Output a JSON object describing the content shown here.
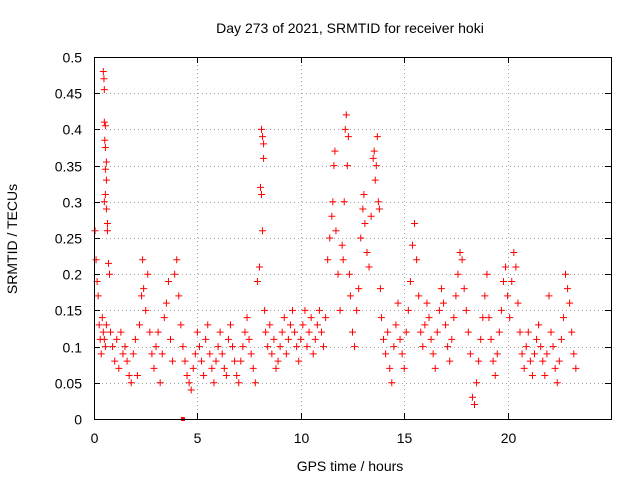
{
  "chart_data": {
    "type": "scatter",
    "title": "Day 273 of 2021, SRMTID for receiver hoki",
    "xlabel": "GPS time / hours",
    "ylabel": "SRMTID / TECUs",
    "xlim": [
      0,
      25
    ],
    "ylim": [
      0,
      0.5
    ],
    "x_ticks": [
      0,
      5,
      10,
      15,
      20
    ],
    "x_tick_labels": [
      "0",
      "5",
      "10",
      "15",
      "20"
    ],
    "y_ticks": [
      0,
      0.05,
      0.1,
      0.15,
      0.2,
      0.25,
      0.3,
      0.35,
      0.4,
      0.45,
      0.5
    ],
    "y_tick_labels": [
      "0",
      "0.05",
      "0.1",
      "0.15",
      "0.2",
      "0.25",
      "0.3",
      "0.35",
      "0.4",
      "0.45",
      "0.5"
    ],
    "grid": true,
    "marker": "+",
    "color": "#ff0000",
    "gap_marker": {
      "x": 4.3,
      "y": 0
    },
    "series": [
      {
        "name": "SRMTID",
        "points": [
          [
            0.05,
            0.26
          ],
          [
            0.1,
            0.22
          ],
          [
            0.15,
            0.19
          ],
          [
            0.2,
            0.17
          ],
          [
            0.25,
            0.13
          ],
          [
            0.3,
            0.11
          ],
          [
            0.35,
            0.09
          ],
          [
            0.4,
            0.14
          ],
          [
            0.45,
            0.12
          ],
          [
            0.5,
            0.11
          ],
          [
            0.55,
            0.1
          ],
          [
            0.6,
            0.13
          ],
          [
            0.45,
            0.48
          ],
          [
            0.48,
            0.47
          ],
          [
            0.5,
            0.455
          ],
          [
            0.5,
            0.41
          ],
          [
            0.55,
            0.405
          ],
          [
            0.52,
            0.385
          ],
          [
            0.55,
            0.375
          ],
          [
            0.6,
            0.355
          ],
          [
            0.55,
            0.345
          ],
          [
            0.6,
            0.33
          ],
          [
            0.55,
            0.31
          ],
          [
            0.5,
            0.3
          ],
          [
            0.6,
            0.29
          ],
          [
            0.65,
            0.27
          ],
          [
            0.65,
            0.26
          ],
          [
            0.7,
            0.215
          ],
          [
            0.75,
            0.2
          ],
          [
            0.8,
            0.12
          ],
          [
            0.9,
            0.1
          ],
          [
            1.0,
            0.08
          ],
          [
            1.1,
            0.11
          ],
          [
            1.2,
            0.07
          ],
          [
            1.3,
            0.12
          ],
          [
            1.4,
            0.09
          ],
          [
            1.5,
            0.1
          ],
          [
            1.6,
            0.08
          ],
          [
            1.7,
            0.06
          ],
          [
            1.8,
            0.05
          ],
          [
            1.9,
            0.09
          ],
          [
            2.0,
            0.11
          ],
          [
            2.1,
            0.06
          ],
          [
            2.2,
            0.13
          ],
          [
            2.3,
            0.17
          ],
          [
            2.35,
            0.22
          ],
          [
            2.4,
            0.18
          ],
          [
            2.5,
            0.15
          ],
          [
            2.6,
            0.2
          ],
          [
            2.7,
            0.12
          ],
          [
            2.8,
            0.09
          ],
          [
            2.9,
            0.07
          ],
          [
            3.0,
            0.1
          ],
          [
            3.1,
            0.12
          ],
          [
            3.2,
            0.05
          ],
          [
            3.3,
            0.09
          ],
          [
            3.4,
            0.14
          ],
          [
            3.5,
            0.16
          ],
          [
            3.6,
            0.19
          ],
          [
            3.7,
            0.11
          ],
          [
            3.8,
            0.08
          ],
          [
            3.9,
            0.2
          ],
          [
            4.0,
            0.22
          ],
          [
            4.1,
            0.17
          ],
          [
            4.2,
            0.13
          ],
          [
            4.3,
            0.1
          ],
          [
            4.4,
            0.08
          ],
          [
            4.5,
            0.06
          ],
          [
            4.6,
            0.05
          ],
          [
            4.7,
            0.04
          ],
          [
            4.8,
            0.07
          ],
          [
            4.9,
            0.09
          ],
          [
            5.0,
            0.12
          ],
          [
            5.1,
            0.1
          ],
          [
            5.2,
            0.08
          ],
          [
            5.3,
            0.06
          ],
          [
            5.4,
            0.11
          ],
          [
            5.5,
            0.13
          ],
          [
            5.6,
            0.09
          ],
          [
            5.7,
            0.07
          ],
          [
            5.8,
            0.05
          ],
          [
            5.9,
            0.08
          ],
          [
            6.0,
            0.1
          ],
          [
            6.1,
            0.12
          ],
          [
            6.2,
            0.09
          ],
          [
            6.3,
            0.07
          ],
          [
            6.4,
            0.06
          ],
          [
            6.5,
            0.11
          ],
          [
            6.6,
            0.13
          ],
          [
            6.7,
            0.1
          ],
          [
            6.8,
            0.08
          ],
          [
            6.9,
            0.06
          ],
          [
            7.0,
            0.05
          ],
          [
            7.1,
            0.08
          ],
          [
            7.2,
            0.1
          ],
          [
            7.3,
            0.12
          ],
          [
            7.4,
            0.14
          ],
          [
            7.5,
            0.11
          ],
          [
            7.6,
            0.09
          ],
          [
            7.7,
            0.07
          ],
          [
            7.8,
            0.05
          ],
          [
            7.9,
            0.19
          ],
          [
            8.0,
            0.21
          ],
          [
            8.05,
            0.32
          ],
          [
            8.1,
            0.31
          ],
          [
            8.15,
            0.26
          ],
          [
            8.1,
            0.4
          ],
          [
            8.15,
            0.39
          ],
          [
            8.2,
            0.38
          ],
          [
            8.2,
            0.36
          ],
          [
            8.25,
            0.15
          ],
          [
            8.3,
            0.12
          ],
          [
            8.4,
            0.1
          ],
          [
            8.5,
            0.13
          ],
          [
            8.6,
            0.09
          ],
          [
            8.7,
            0.11
          ],
          [
            8.8,
            0.07
          ],
          [
            8.9,
            0.08
          ],
          [
            9.0,
            0.1
          ],
          [
            9.1,
            0.12
          ],
          [
            9.2,
            0.14
          ],
          [
            9.3,
            0.09
          ],
          [
            9.4,
            0.11
          ],
          [
            9.5,
            0.13
          ],
          [
            9.6,
            0.15
          ],
          [
            9.7,
            0.12
          ],
          [
            9.8,
            0.1
          ],
          [
            9.9,
            0.08
          ],
          [
            10.0,
            0.11
          ],
          [
            10.1,
            0.13
          ],
          [
            10.2,
            0.15
          ],
          [
            10.3,
            0.1
          ],
          [
            10.4,
            0.12
          ],
          [
            10.5,
            0.14
          ],
          [
            10.6,
            0.09
          ],
          [
            10.7,
            0.11
          ],
          [
            10.8,
            0.13
          ],
          [
            10.9,
            0.15
          ],
          [
            11.0,
            0.12
          ],
          [
            11.1,
            0.1
          ],
          [
            11.2,
            0.14
          ],
          [
            11.3,
            0.22
          ],
          [
            11.4,
            0.25
          ],
          [
            11.5,
            0.28
          ],
          [
            11.55,
            0.3
          ],
          [
            11.6,
            0.35
          ],
          [
            11.65,
            0.37
          ],
          [
            11.7,
            0.26
          ],
          [
            11.8,
            0.2
          ],
          [
            11.9,
            0.15
          ],
          [
            12.0,
            0.24
          ],
          [
            12.05,
            0.22
          ],
          [
            12.1,
            0.3
          ],
          [
            12.15,
            0.4
          ],
          [
            12.2,
            0.42
          ],
          [
            12.25,
            0.35
          ],
          [
            12.3,
            0.39
          ],
          [
            12.35,
            0.2
          ],
          [
            12.4,
            0.17
          ],
          [
            12.5,
            0.12
          ],
          [
            12.6,
            0.1
          ],
          [
            12.7,
            0.15
          ],
          [
            12.8,
            0.18
          ],
          [
            12.9,
            0.25
          ],
          [
            13.0,
            0.29
          ],
          [
            13.05,
            0.31
          ],
          [
            13.1,
            0.27
          ],
          [
            13.2,
            0.23
          ],
          [
            13.3,
            0.21
          ],
          [
            13.4,
            0.28
          ],
          [
            13.5,
            0.36
          ],
          [
            13.55,
            0.37
          ],
          [
            13.6,
            0.33
          ],
          [
            13.65,
            0.35
          ],
          [
            13.7,
            0.39
          ],
          [
            13.75,
            0.3
          ],
          [
            13.8,
            0.29
          ],
          [
            13.85,
            0.18
          ],
          [
            13.9,
            0.14
          ],
          [
            14.0,
            0.11
          ],
          [
            14.1,
            0.09
          ],
          [
            14.2,
            0.12
          ],
          [
            14.3,
            0.07
          ],
          [
            14.4,
            0.05
          ],
          [
            14.5,
            0.1
          ],
          [
            14.6,
            0.13
          ],
          [
            14.7,
            0.16
          ],
          [
            14.8,
            0.11
          ],
          [
            14.9,
            0.09
          ],
          [
            15.0,
            0.07
          ],
          [
            15.1,
            0.12
          ],
          [
            15.2,
            0.15
          ],
          [
            15.3,
            0.19
          ],
          [
            15.4,
            0.24
          ],
          [
            15.5,
            0.27
          ],
          [
            15.6,
            0.22
          ],
          [
            15.7,
            0.17
          ],
          [
            15.8,
            0.12
          ],
          [
            15.9,
            0.1
          ],
          [
            16.0,
            0.13
          ],
          [
            16.1,
            0.16
          ],
          [
            16.2,
            0.14
          ],
          [
            16.3,
            0.11
          ],
          [
            16.4,
            0.09
          ],
          [
            16.5,
            0.07
          ],
          [
            16.6,
            0.12
          ],
          [
            16.7,
            0.15
          ],
          [
            16.8,
            0.18
          ],
          [
            16.9,
            0.16
          ],
          [
            17.0,
            0.13
          ],
          [
            17.1,
            0.1
          ],
          [
            17.2,
            0.08
          ],
          [
            17.3,
            0.11
          ],
          [
            17.4,
            0.14
          ],
          [
            17.5,
            0.17
          ],
          [
            17.6,
            0.2
          ],
          [
            17.7,
            0.23
          ],
          [
            17.8,
            0.22
          ],
          [
            17.9,
            0.18
          ],
          [
            18.0,
            0.15
          ],
          [
            18.1,
            0.12
          ],
          [
            18.2,
            0.09
          ],
          [
            18.3,
            0.03
          ],
          [
            18.4,
            0.02
          ],
          [
            18.5,
            0.05
          ],
          [
            18.6,
            0.08
          ],
          [
            18.7,
            0.11
          ],
          [
            18.8,
            0.14
          ],
          [
            18.9,
            0.17
          ],
          [
            19.0,
            0.2
          ],
          [
            19.1,
            0.14
          ],
          [
            19.2,
            0.11
          ],
          [
            19.3,
            0.08
          ],
          [
            19.4,
            0.06
          ],
          [
            19.5,
            0.09
          ],
          [
            19.6,
            0.12
          ],
          [
            19.7,
            0.15
          ],
          [
            19.8,
            0.19
          ],
          [
            19.9,
            0.21
          ],
          [
            20.0,
            0.17
          ],
          [
            20.1,
            0.14
          ],
          [
            20.2,
            0.19
          ],
          [
            20.3,
            0.23
          ],
          [
            20.4,
            0.21
          ],
          [
            20.5,
            0.16
          ],
          [
            20.6,
            0.12
          ],
          [
            20.7,
            0.09
          ],
          [
            20.8,
            0.07
          ],
          [
            20.9,
            0.1
          ],
          [
            21.0,
            0.12
          ],
          [
            21.1,
            0.08
          ],
          [
            21.2,
            0.06
          ],
          [
            21.3,
            0.09
          ],
          [
            21.4,
            0.11
          ],
          [
            21.5,
            0.13
          ],
          [
            21.6,
            0.1
          ],
          [
            21.7,
            0.08
          ],
          [
            21.8,
            0.06
          ],
          [
            21.9,
            0.09
          ],
          [
            22.0,
            0.17
          ],
          [
            22.1,
            0.12
          ],
          [
            22.2,
            0.1
          ],
          [
            22.3,
            0.07
          ],
          [
            22.4,
            0.05
          ],
          [
            22.5,
            0.08
          ],
          [
            22.6,
            0.11
          ],
          [
            22.7,
            0.14
          ],
          [
            22.8,
            0.2
          ],
          [
            22.9,
            0.18
          ],
          [
            23.0,
            0.16
          ],
          [
            23.1,
            0.12
          ],
          [
            23.2,
            0.09
          ],
          [
            23.3,
            0.07
          ]
        ]
      }
    ]
  }
}
